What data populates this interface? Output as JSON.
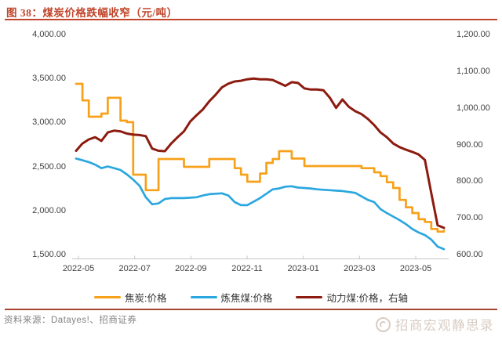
{
  "header": {
    "title": "图 38：煤炭价格跌幅收窄（元/吨）"
  },
  "source": {
    "label": "资料来源：Datayes!、招商证券"
  },
  "watermark": {
    "text": "招商宏观静思录",
    "icon": "swirl-logo"
  },
  "colors": {
    "accent": "#C0462B",
    "bottom_rule": "#A84432",
    "axis_text": "#404040",
    "axis_line": "#C6C6C6",
    "source_text": "#828282",
    "watermark": "#D8CCC3"
  },
  "chart_data": {
    "type": "line",
    "title": "煤炭价格跌幅收窄（元/吨）",
    "grid": "off",
    "legend_position": "bottom",
    "x_tick_labels": [
      "2022-05",
      "2022-07",
      "2022-09",
      "2022-11",
      "2023-01",
      "2023-03",
      "2023-05"
    ],
    "left_axis": {
      "min": 1500,
      "max": 4000,
      "ticks": [
        "4,000.00",
        "3,500.00",
        "3,000.00",
        "2,500.00",
        "2,000.00",
        "1,500.00"
      ]
    },
    "right_axis": {
      "min": 600,
      "max": 1200,
      "ticks": [
        "1,200.00",
        "1,100.00",
        "1,000.00",
        "900.00",
        "800.00",
        "700.00",
        "600.00"
      ]
    },
    "series": [
      {
        "name": "焦炭:价格",
        "axis": "left",
        "color": "#F7A11A",
        "style": "step",
        "width": 2.7,
        "values": [
          3448,
          3260,
          3075,
          3075,
          3110,
          3290,
          3290,
          3030,
          3013,
          2416,
          2416,
          2240,
          2240,
          2594,
          2594,
          2594,
          2594,
          2505,
          2505,
          2505,
          2505,
          2594,
          2594,
          2594,
          2594,
          2490,
          2416,
          2336,
          2336,
          2430,
          2550,
          2594,
          2683,
          2683,
          2600,
          2600,
          2514,
          2514,
          2514,
          2514,
          2514,
          2514,
          2514,
          2514,
          2514,
          2490,
          2490,
          2443,
          2400,
          2330,
          2265,
          2130,
          2045,
          1980,
          1910,
          1880,
          1800,
          1770,
          1780
        ]
      },
      {
        "name": "炼焦煤:价格",
        "axis": "left",
        "color": "#2BA7DF",
        "style": "line",
        "width": 2.7,
        "values": [
          2600,
          2580,
          2560,
          2530,
          2490,
          2510,
          2490,
          2470,
          2420,
          2360,
          2290,
          2160,
          2080,
          2090,
          2140,
          2150,
          2150,
          2150,
          2155,
          2160,
          2180,
          2195,
          2200,
          2205,
          2180,
          2105,
          2070,
          2070,
          2110,
          2150,
          2200,
          2250,
          2260,
          2280,
          2285,
          2270,
          2265,
          2260,
          2250,
          2245,
          2240,
          2235,
          2230,
          2220,
          2210,
          2170,
          2130,
          2105,
          2025,
          1980,
          1940,
          1900,
          1855,
          1800,
          1760,
          1730,
          1680,
          1600,
          1570
        ]
      },
      {
        "name": "动力煤:价格，右轴",
        "axis": "right",
        "color": "#8C1B10",
        "style": "line",
        "width": 3,
        "values": [
          885,
          905,
          916,
          922,
          912,
          935,
          940,
          938,
          932,
          929,
          928,
          925,
          891,
          885,
          884,
          905,
          922,
          938,
          965,
          982,
          998,
          1020,
          1038,
          1058,
          1068,
          1074,
          1076,
          1080,
          1082,
          1080,
          1080,
          1078,
          1070,
          1062,
          1072,
          1070,
          1055,
          1052,
          1052,
          1050,
          1030,
          1002,
          1025,
          1005,
          993,
          985,
          972,
          955,
          935,
          922,
          905,
          895,
          888,
          882,
          875,
          860,
          770,
          682,
          675
        ]
      }
    ]
  }
}
